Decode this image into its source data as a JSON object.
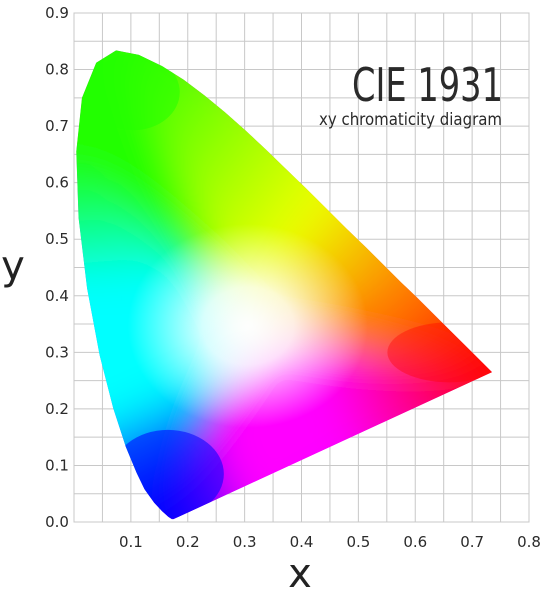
{
  "chart_data": {
    "type": "diagram",
    "title": "CIE 1931",
    "subtitle": "xy chromaticity diagram",
    "xlabel": "x",
    "ylabel": "y",
    "xlim": [
      0.0,
      0.8
    ],
    "ylim": [
      0.0,
      0.9
    ],
    "x_ticks": [
      "0.1",
      "0.2",
      "0.3",
      "0.4",
      "0.5",
      "0.6",
      "0.7",
      "0.8"
    ],
    "y_ticks": [
      "0.0",
      "0.1",
      "0.2",
      "0.3",
      "0.4",
      "0.5",
      "0.6",
      "0.7",
      "0.8",
      "0.9"
    ],
    "x_tick_values": [
      0.1,
      0.2,
      0.3,
      0.4,
      0.5,
      0.6,
      0.7,
      0.8
    ],
    "y_tick_values": [
      0.0,
      0.1,
      0.2,
      0.3,
      0.4,
      0.5,
      0.6,
      0.7,
      0.8,
      0.9
    ],
    "grid": true,
    "minor_grid_step": 0.05,
    "gamut_boundary": [
      [
        0.175,
        0.005
      ],
      [
        0.172,
        0.005
      ],
      [
        0.166,
        0.009
      ],
      [
        0.155,
        0.019
      ],
      [
        0.141,
        0.034
      ],
      [
        0.124,
        0.058
      ],
      [
        0.11,
        0.087
      ],
      [
        0.091,
        0.133
      ],
      [
        0.069,
        0.201
      ],
      [
        0.045,
        0.295
      ],
      [
        0.023,
        0.413
      ],
      [
        0.008,
        0.538
      ],
      [
        0.004,
        0.655
      ],
      [
        0.014,
        0.75
      ],
      [
        0.039,
        0.812
      ],
      [
        0.074,
        0.834
      ],
      [
        0.114,
        0.826
      ],
      [
        0.155,
        0.806
      ],
      [
        0.193,
        0.782
      ],
      [
        0.23,
        0.754
      ],
      [
        0.266,
        0.724
      ],
      [
        0.302,
        0.692
      ],
      [
        0.337,
        0.659
      ],
      [
        0.373,
        0.624
      ],
      [
        0.409,
        0.589
      ],
      [
        0.444,
        0.554
      ],
      [
        0.479,
        0.519
      ],
      [
        0.513,
        0.486
      ],
      [
        0.547,
        0.452
      ],
      [
        0.575,
        0.424
      ],
      [
        0.6,
        0.4
      ],
      [
        0.628,
        0.372
      ],
      [
        0.658,
        0.342
      ],
      [
        0.686,
        0.314
      ],
      [
        0.735,
        0.265
      ],
      [
        0.175,
        0.005
      ]
    ],
    "colors": {
      "grid": "#c8c8c8",
      "white_point": "#ffffff",
      "red": "#ff0000",
      "green": "#22ff00",
      "blue": "#0000ff",
      "cyan": "#00ffff",
      "yellow": "#eeff00",
      "magenta": "#ff00ff",
      "orange": "#ff7a00"
    }
  }
}
